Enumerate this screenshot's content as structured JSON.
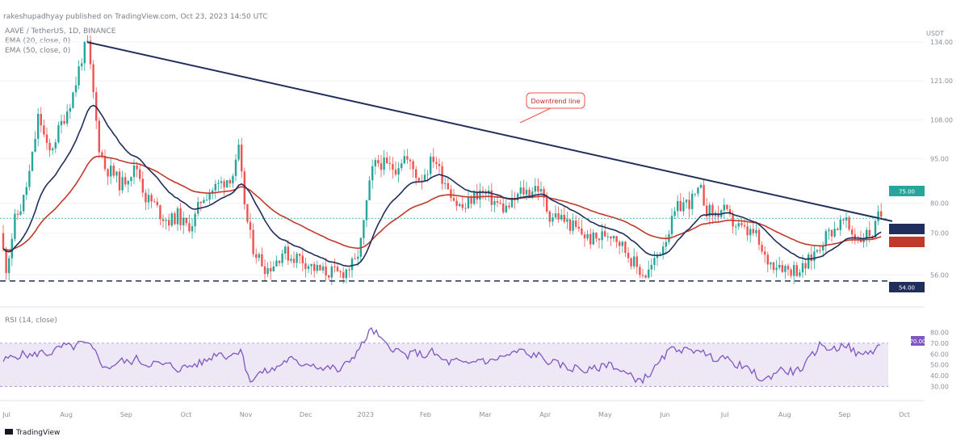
{
  "header": {
    "publisher": "rakeshupadhyay published on TradingView.com, Oct 23, 2023 14:50 UTC",
    "symbol_line": "AAVE / TetherUS, 1D, BINANCE",
    "ema_short": "EMA (20, close, 0)",
    "ema_long": "EMA (50, close, 0)",
    "rsi_label": "RSI (14, close)"
  },
  "footer": {
    "brand": "TradingView"
  },
  "annotation": {
    "text": "Downtrend line"
  },
  "colors": {
    "up": "#26a69a",
    "down": "#ef5350",
    "ema_short": "#1f2e5a",
    "ema_long": "#c0392b",
    "trend": "#1f2e5a",
    "rsi": "#7e57c2",
    "rsi_band": "#ede7f6",
    "support": "#1f2e5a"
  },
  "chart_data": [
    {
      "type": "candlestick",
      "x_ticks": [
        "Jul",
        "Aug",
        "Sep",
        "Oct",
        "Nov",
        "Dec",
        "2023",
        "Feb",
        "Mar",
        "Apr",
        "May",
        "Jun",
        "Jul",
        "Aug",
        "Sep",
        "Oct"
      ],
      "y_ticks": [
        56.0,
        70.0,
        80.0,
        95.0,
        108.0,
        121.0,
        134.0
      ],
      "ylim": [
        48,
        140
      ],
      "price_axis_label": "USDT",
      "key_levels": {
        "support": 54.0,
        "current_price": 75.0
      },
      "series": [
        {
          "name": "AAVE / TetherUS",
          "data": [
            [
              0,
              70
            ],
            [
              8,
              58
            ],
            [
              18,
              74
            ],
            [
              28,
              80
            ],
            [
              38,
              92
            ],
            [
              48,
              110
            ],
            [
              60,
              96
            ],
            [
              72,
              104
            ],
            [
              84,
              112
            ],
            [
              92,
              118
            ],
            [
              100,
              128
            ],
            [
              108,
              134
            ],
            [
              115,
              118
            ],
            [
              122,
              100
            ],
            [
              130,
              92
            ],
            [
              140,
              90
            ],
            [
              150,
              86
            ],
            [
              160,
              90
            ],
            [
              170,
              92
            ],
            [
              180,
              82
            ],
            [
              190,
              80
            ],
            [
              200,
              76
            ],
            [
              210,
              74
            ],
            [
              220,
              76
            ],
            [
              230,
              72
            ],
            [
              240,
              74
            ],
            [
              250,
              82
            ],
            [
              260,
              84
            ],
            [
              270,
              86
            ],
            [
              280,
              88
            ],
            [
              290,
              90
            ],
            [
              296,
              98
            ],
            [
              300,
              86
            ],
            [
              306,
              74
            ],
            [
              312,
              66
            ],
            [
              320,
              62
            ],
            [
              330,
              58
            ],
            [
              340,
              60
            ],
            [
              350,
              64
            ],
            [
              360,
              62
            ],
            [
              370,
              62
            ],
            [
              380,
              60
            ],
            [
              390,
              58
            ],
            [
              400,
              57
            ],
            [
              410,
              57
            ],
            [
              420,
              56
            ],
            [
              430,
              58
            ],
            [
              440,
              60
            ],
            [
              448,
              68
            ],
            [
              455,
              82
            ],
            [
              462,
              92
            ],
            [
              470,
              94
            ],
            [
              480,
              92
            ],
            [
              490,
              92
            ],
            [
              500,
              96
            ],
            [
              510,
              92
            ],
            [
              520,
              88
            ],
            [
              530,
              92
            ],
            [
              538,
              96
            ],
            [
              545,
              90
            ],
            [
              555,
              86
            ],
            [
              565,
              80
            ],
            [
              575,
              78
            ],
            [
              585,
              82
            ],
            [
              595,
              84
            ],
            [
              605,
              82
            ],
            [
              615,
              80
            ],
            [
              625,
              78
            ],
            [
              635,
              80
            ],
            [
              645,
              84
            ],
            [
              655,
              84
            ],
            [
              665,
              86
            ],
            [
              672,
              82
            ],
            [
              680,
              76
            ],
            [
              690,
              76
            ],
            [
              700,
              74
            ],
            [
              710,
              72
            ],
            [
              720,
              70
            ],
            [
              730,
              68
            ],
            [
              740,
              68
            ],
            [
              750,
              70
            ],
            [
              760,
              70
            ],
            [
              770,
              66
            ],
            [
              780,
              62
            ],
            [
              790,
              58
            ],
            [
              800,
              56
            ],
            [
              810,
              60
            ],
            [
              820,
              66
            ],
            [
              830,
              72
            ],
            [
              838,
              78
            ],
            [
              846,
              80
            ],
            [
              852,
              80
            ],
            [
              860,
              82
            ],
            [
              868,
              84
            ],
            [
              875,
              78
            ],
            [
              885,
              76
            ],
            [
              895,
              78
            ],
            [
              905,
              74
            ],
            [
              915,
              72
            ],
            [
              925,
              70
            ],
            [
              935,
              70
            ],
            [
              945,
              62
            ],
            [
              955,
              60
            ],
            [
              965,
              60
            ],
            [
              975,
              58
            ],
            [
              985,
              58
            ],
            [
              995,
              58
            ],
            [
              1005,
              62
            ],
            [
              1015,
              66
            ],
            [
              1025,
              70
            ],
            [
              1035,
              72
            ],
            [
              1045,
              74
            ],
            [
              1055,
              70
            ],
            [
              1065,
              68
            ],
            [
              1075,
              70
            ],
            [
              1082,
              70
            ],
            [
              1088,
              76
            ]
          ]
        }
      ]
    },
    {
      "type": "line",
      "name": "RSI (14, close)",
      "y_ticks": [
        80.0,
        70.0,
        60.0,
        50.0,
        40.0,
        30.0
      ],
      "ylim": [
        20,
        90
      ],
      "band": [
        30,
        70
      ],
      "current_value": 70.0,
      "series": [
        {
          "name": "RSI",
          "data": [
            [
              0,
              52
            ],
            [
              10,
              56
            ],
            [
              20,
              58
            ],
            [
              30,
              60
            ],
            [
              40,
              58
            ],
            [
              50,
              62
            ],
            [
              60,
              60
            ],
            [
              70,
              64
            ],
            [
              80,
              68
            ],
            [
              90,
              66
            ],
            [
              100,
              70
            ],
            [
              110,
              68
            ],
            [
              120,
              60
            ],
            [
              130,
              46
            ],
            [
              140,
              50
            ],
            [
              150,
              54
            ],
            [
              160,
              52
            ],
            [
              170,
              56
            ],
            [
              180,
              50
            ],
            [
              190,
              52
            ],
            [
              200,
              50
            ],
            [
              210,
              50
            ],
            [
              220,
              46
            ],
            [
              230,
              48
            ],
            [
              240,
              50
            ],
            [
              250,
              52
            ],
            [
              260,
              56
            ],
            [
              270,
              62
            ],
            [
              280,
              58
            ],
            [
              290,
              60
            ],
            [
              300,
              66
            ],
            [
              305,
              40
            ],
            [
              312,
              36
            ],
            [
              320,
              42
            ],
            [
              330,
              44
            ],
            [
              340,
              46
            ],
            [
              350,
              52
            ],
            [
              360,
              56
            ],
            [
              370,
              50
            ],
            [
              380,
              52
            ],
            [
              390,
              50
            ],
            [
              400,
              46
            ],
            [
              410,
              48
            ],
            [
              420,
              44
            ],
            [
              430,
              52
            ],
            [
              440,
              60
            ],
            [
              450,
              70
            ],
            [
              458,
              82
            ],
            [
              465,
              80
            ],
            [
              475,
              70
            ],
            [
              485,
              66
            ],
            [
              495,
              62
            ],
            [
              505,
              58
            ],
            [
              515,
              62
            ],
            [
              525,
              58
            ],
            [
              535,
              62
            ],
            [
              545,
              56
            ],
            [
              555,
              52
            ],
            [
              565,
              54
            ],
            [
              575,
              50
            ],
            [
              585,
              52
            ],
            [
              595,
              56
            ],
            [
              605,
              52
            ],
            [
              615,
              56
            ],
            [
              625,
              58
            ],
            [
              635,
              60
            ],
            [
              645,
              64
            ],
            [
              655,
              58
            ],
            [
              665,
              60
            ],
            [
              675,
              54
            ],
            [
              685,
              52
            ],
            [
              695,
              50
            ],
            [
              705,
              46
            ],
            [
              715,
              48
            ],
            [
              725,
              44
            ],
            [
              735,
              46
            ],
            [
              745,
              48
            ],
            [
              755,
              52
            ],
            [
              765,
              46
            ],
            [
              775,
              42
            ],
            [
              785,
              38
            ],
            [
              795,
              36
            ],
            [
              805,
              42
            ],
            [
              815,
              50
            ],
            [
              825,
              60
            ],
            [
              835,
              66
            ],
            [
              845,
              64
            ],
            [
              855,
              62
            ],
            [
              865,
              66
            ],
            [
              875,
              58
            ],
            [
              885,
              56
            ],
            [
              895,
              58
            ],
            [
              905,
              52
            ],
            [
              915,
              50
            ],
            [
              925,
              46
            ],
            [
              935,
              42
            ],
            [
              945,
              34
            ],
            [
              955,
              40
            ],
            [
              965,
              46
            ],
            [
              975,
              44
            ],
            [
              985,
              44
            ],
            [
              995,
              48
            ],
            [
              1005,
              58
            ],
            [
              1015,
              68
            ],
            [
              1025,
              66
            ],
            [
              1035,
              64
            ],
            [
              1045,
              70
            ],
            [
              1055,
              64
            ],
            [
              1065,
              58
            ],
            [
              1075,
              62
            ],
            [
              1085,
              64
            ],
            [
              1092,
              72
            ]
          ]
        }
      ]
    }
  ]
}
